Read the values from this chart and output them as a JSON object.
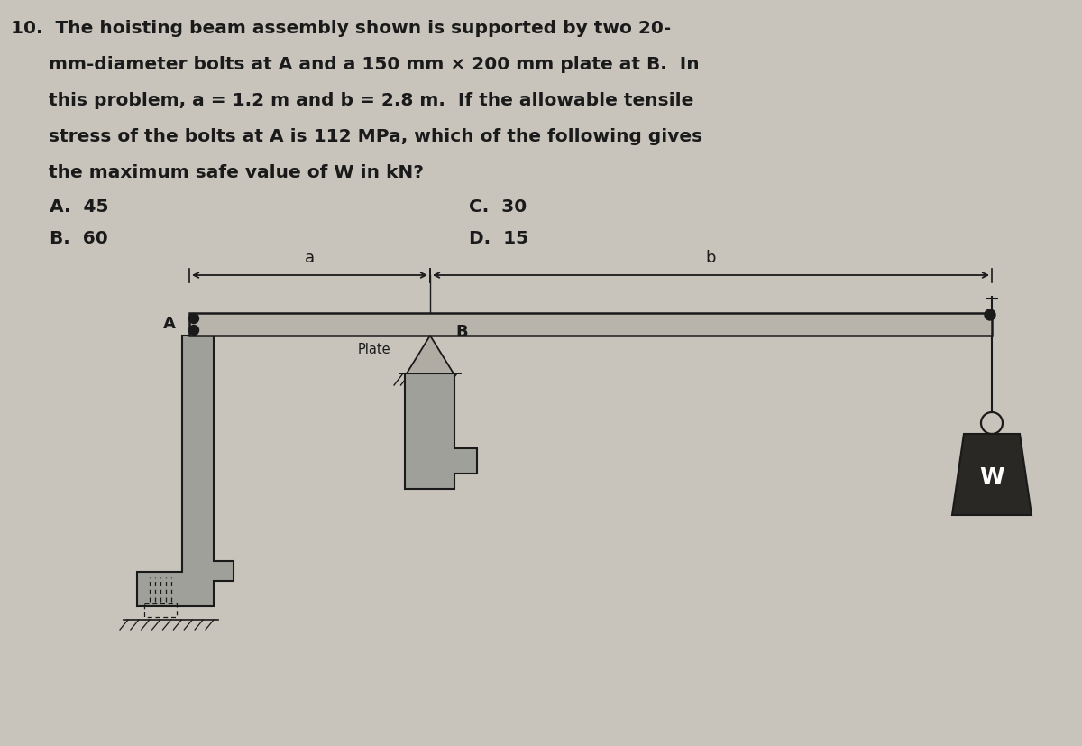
{
  "background_color": "#c8c4bc",
  "text_color": "#1a1a1a",
  "diagram_line_color": "#1a1a1a",
  "beam_fill": "#b8b4ac",
  "wall_fill": "#9a9690",
  "weight_fill": "#2a2825",
  "tri_fill": "#b0aca4",
  "question_lines": [
    "10.  The hoisting beam assembly shown is supported by two 20-",
    "      mm-diameter bolts at A and a 150 mm × 200 mm plate at B.  In",
    "      this problem, a = 1.2 m and b = 2.8 m.  If the allowable tensile",
    "      stress of the bolts at A is 112 MPa, which of the following gives",
    "      the maximum safe value of W in kN?"
  ],
  "choice_A": "A.  45",
  "choice_B": "B.  60",
  "choice_C": "C.  30",
  "choice_D": "D.  15"
}
